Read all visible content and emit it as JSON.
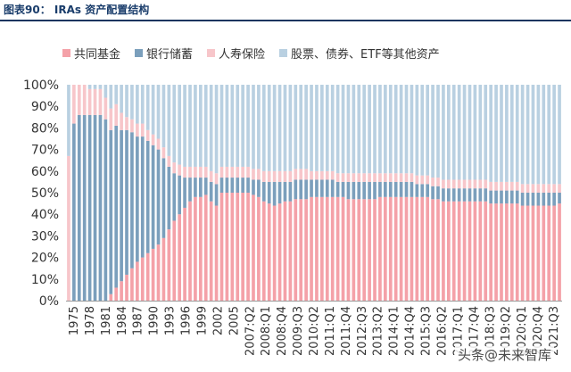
{
  "title": "图表90： IRAs 资产配置结构",
  "watermark": "头条@未来智库",
  "colors": {
    "mutual_funds": "#f4a1a8",
    "bank": "#7b9fbc",
    "insurance": "#f7c6ca",
    "other": "#b9d0e1",
    "title": "#1a3d6b",
    "rule": "#17355f"
  },
  "chart_data": {
    "type": "bar",
    "stacked": true,
    "ylim": [
      0,
      100
    ],
    "yticks": [
      "0%",
      "10%",
      "20%",
      "30%",
      "40%",
      "50%",
      "60%",
      "70%",
      "80%",
      "90%",
      "100%"
    ],
    "grid": false,
    "legend_position": "top",
    "xtick_labels": [
      "1975",
      "1978",
      "1981",
      "1984",
      "1987",
      "1990",
      "1993",
      "1996",
      "1999",
      "2002",
      "2005",
      "2007:Q2",
      "2008:Q1",
      "2008:Q4",
      "2009:Q3",
      "2010:Q2",
      "2011:Q1",
      "2011:Q4",
      "2012:Q3",
      "2013:Q2",
      "2014:Q1",
      "2014:Q4",
      "2015:Q3",
      "2016:Q2",
      "2017:Q1",
      "2017:Q4",
      "2018:Q3",
      "2019:Q2",
      "2020:Q1",
      "2020:Q4",
      "2021:Q3"
    ],
    "bar_count": 94,
    "series": [
      {
        "name": "共同基金",
        "color": "#f4a1a8",
        "values": [
          0,
          0,
          0,
          0,
          0,
          0,
          0,
          0,
          3,
          6,
          9,
          12,
          15,
          18,
          20,
          22,
          24,
          26,
          29,
          33,
          37,
          40,
          43,
          46,
          48,
          48,
          49,
          46,
          44,
          50,
          50,
          50,
          50,
          50,
          50,
          49,
          48,
          46,
          45,
          44,
          45,
          46,
          46,
          47,
          47,
          47,
          48,
          48,
          48,
          48,
          48,
          48,
          48,
          47,
          47,
          47,
          47,
          47,
          47,
          48,
          48,
          48,
          48,
          48,
          48,
          48,
          48,
          48,
          48,
          47,
          47,
          46,
          46,
          46,
          46,
          46,
          46,
          46,
          46,
          46,
          45,
          45,
          45,
          45,
          45,
          45,
          44,
          44,
          44,
          44,
          44,
          44,
          44,
          45
        ]
      },
      {
        "name": "银行储蓄",
        "color": "#7b9fbc",
        "values": [
          0,
          82,
          86,
          86,
          86,
          86,
          86,
          84,
          76,
          75,
          70,
          67,
          63,
          58,
          56,
          52,
          48,
          44,
          37,
          29,
          22,
          18,
          14,
          11,
          9,
          9,
          8,
          9,
          10,
          7,
          7,
          7,
          7,
          7,
          7,
          7,
          8,
          9,
          10,
          11,
          10,
          9,
          9,
          9,
          9,
          9,
          8,
          8,
          8,
          8,
          8,
          7,
          7,
          8,
          8,
          8,
          8,
          8,
          8,
          7,
          7,
          7,
          7,
          7,
          7,
          7,
          6,
          6,
          6,
          6,
          6,
          6,
          6,
          6,
          6,
          6,
          6,
          6,
          6,
          6,
          6,
          6,
          6,
          6,
          6,
          6,
          6,
          6,
          6,
          6,
          6,
          6,
          6,
          5
        ]
      },
      {
        "name": "人寿保险",
        "color": "#f7c6ca",
        "values": [
          67,
          18,
          14,
          14,
          12,
          12,
          12,
          10,
          10,
          10,
          8,
          6,
          6,
          6,
          6,
          5,
          5,
          5,
          5,
          5,
          5,
          5,
          5,
          5,
          5,
          5,
          5,
          5,
          5,
          5,
          5,
          5,
          5,
          5,
          5,
          5,
          5,
          5,
          5,
          5,
          5,
          5,
          5,
          5,
          5,
          5,
          4,
          4,
          4,
          4,
          4,
          4,
          4,
          4,
          4,
          4,
          4,
          4,
          4,
          4,
          4,
          4,
          4,
          4,
          4,
          4,
          4,
          4,
          4,
          4,
          4,
          4,
          4,
          4,
          4,
          4,
          4,
          4,
          4,
          4,
          4,
          4,
          4,
          4,
          4,
          4,
          4,
          4,
          4,
          4,
          4,
          4,
          4,
          4
        ]
      },
      {
        "name": "股票、债券、ETF等其他资产",
        "color": "#b9d0e1",
        "values": [
          33,
          0,
          0,
          0,
          2,
          2,
          2,
          6,
          11,
          9,
          13,
          15,
          16,
          18,
          18,
          21,
          23,
          25,
          29,
          33,
          36,
          37,
          38,
          38,
          38,
          38,
          38,
          40,
          41,
          38,
          38,
          38,
          38,
          38,
          38,
          39,
          39,
          40,
          40,
          40,
          40,
          40,
          40,
          39,
          39,
          39,
          40,
          40,
          40,
          40,
          40,
          41,
          41,
          41,
          41,
          41,
          41,
          41,
          41,
          41,
          41,
          41,
          41,
          41,
          41,
          41,
          42,
          42,
          42,
          43,
          43,
          44,
          44,
          44,
          44,
          44,
          44,
          44,
          44,
          44,
          45,
          45,
          45,
          45,
          45,
          45,
          46,
          46,
          46,
          46,
          46,
          46,
          46,
          46
        ]
      }
    ]
  }
}
